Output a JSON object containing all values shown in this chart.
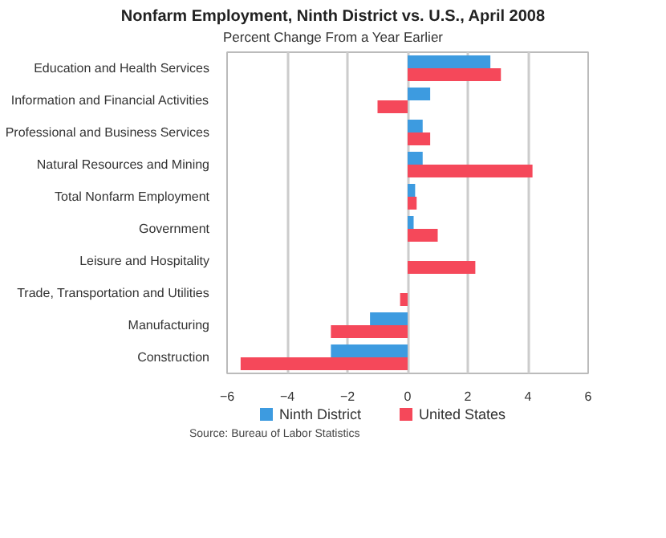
{
  "chart_data": {
    "type": "bar",
    "orientation": "horizontal",
    "title": "Nonfarm Employment, Ninth District vs. U.S., April 2008",
    "subtitle": "Percent Change From a Year Earlier",
    "categories": [
      "Education and Health Services",
      "Information and Financial Activities",
      "Professional and Business Services",
      "Natural Resources and Mining",
      "Total Nonfarm Employment",
      "Government",
      "Leisure and Hospitality",
      "Trade, Transportation and Utilities",
      "Manufacturing",
      "Construction"
    ],
    "series": [
      {
        "name": "Ninth District",
        "color": "#3d9be0",
        "values": [
          2.75,
          0.75,
          0.5,
          0.5,
          0.25,
          0.2,
          0,
          0,
          -1.25,
          -2.55
        ]
      },
      {
        "name": "United States",
        "color": "#f5485a",
        "values": [
          3.1,
          -1.0,
          0.75,
          4.15,
          0.3,
          1.0,
          2.25,
          -0.25,
          -2.55,
          -5.55
        ]
      }
    ],
    "xlim": [
      -6,
      6
    ],
    "xticks": [
      {
        "value": -6,
        "label": "−6"
      },
      {
        "value": -4,
        "label": "−4"
      },
      {
        "value": -2,
        "label": "−2"
      },
      0,
      2,
      4,
      6
    ],
    "grid": "x",
    "legend": "bottom",
    "annotations": [
      "Source: Bureau of Labor Statistics"
    ]
  }
}
